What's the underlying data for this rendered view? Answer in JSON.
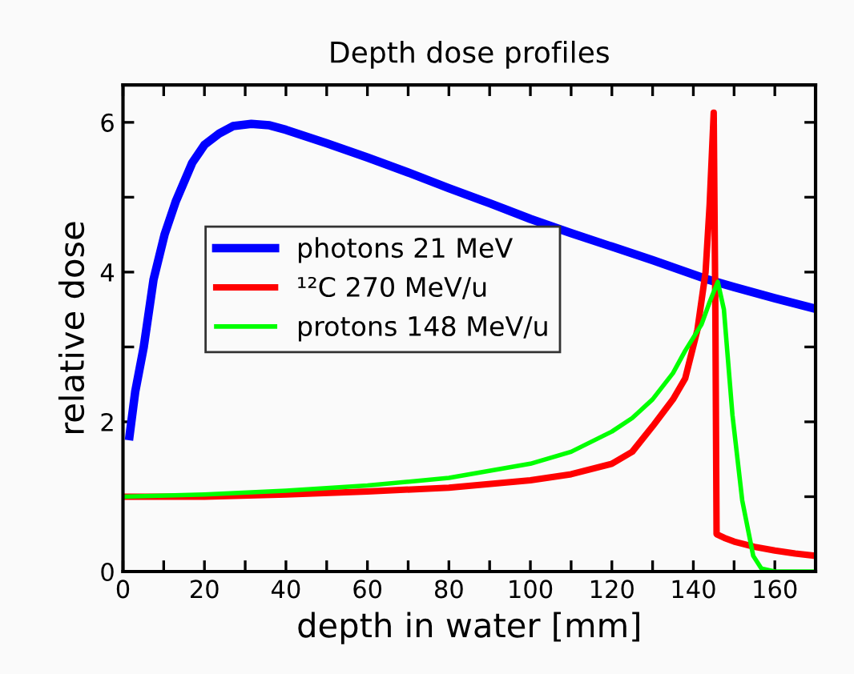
{
  "chart_data": {
    "type": "line",
    "title": "Depth dose profiles",
    "xlabel": "depth in water [mm]",
    "ylabel": "relative dose",
    "xlim": [
      0,
      170
    ],
    "ylim": [
      0,
      6.5
    ],
    "xticks": [
      0,
      {
        "value": 10,
        "label": null
      },
      20,
      {
        "value": 30,
        "label": null
      },
      40,
      {
        "value": 50,
        "label": null
      },
      60,
      {
        "value": 70,
        "label": null
      },
      80,
      {
        "value": 90,
        "label": null
      },
      100,
      {
        "value": 110,
        "label": null
      },
      120,
      {
        "value": 130,
        "label": null
      },
      140,
      {
        "value": 150,
        "label": null
      },
      160
    ],
    "yticks": [
      0,
      {
        "value": 1,
        "label": null
      },
      2,
      {
        "value": 3,
        "label": null
      },
      4,
      {
        "value": 5,
        "label": null
      },
      6
    ],
    "grid": false,
    "legend": "left",
    "marker": "none",
    "line_style": "solid",
    "series": [
      {
        "name": "photons 21 MeV",
        "color": "#0000ff",
        "x": [
          1.6,
          3,
          5.1,
          7.5,
          10.2,
          13,
          17,
          20,
          23.6,
          27,
          31.5,
          36,
          40,
          50,
          60,
          70,
          80,
          90,
          100,
          110,
          120,
          130,
          143,
          150,
          160,
          170
        ],
        "values": [
          1.81,
          2.4,
          3.0,
          3.9,
          4.5,
          4.95,
          5.46,
          5.7,
          5.85,
          5.95,
          5.98,
          5.96,
          5.9,
          5.72,
          5.53,
          5.33,
          5.12,
          4.92,
          4.71,
          4.52,
          4.34,
          4.16,
          3.91,
          3.8,
          3.65,
          3.51
        ]
      },
      {
        "name": "¹²C 270 MeV/u",
        "color": "#ff0000",
        "x": [
          0,
          20,
          40,
          60,
          80,
          100,
          110,
          120,
          125,
          130,
          135,
          138,
          141,
          143,
          144,
          145,
          145.4,
          145.7,
          147.6,
          150,
          155,
          160,
          165,
          170
        ],
        "values": [
          1.0,
          1.0,
          1.03,
          1.07,
          1.12,
          1.22,
          1.3,
          1.44,
          1.6,
          1.94,
          2.3,
          2.58,
          3.23,
          4.0,
          4.9,
          6.13,
          3.5,
          0.5,
          0.45,
          0.4,
          0.33,
          0.28,
          0.24,
          0.21
        ]
      },
      {
        "name": "protons 148 MeV/u",
        "color": "#00ff00",
        "x": [
          0,
          20,
          40,
          60,
          80,
          100,
          110,
          120,
          125,
          130,
          135,
          138,
          142,
          144,
          146,
          147.5,
          149.6,
          152,
          154.7,
          156.7,
          160,
          170
        ],
        "values": [
          1.0,
          1.03,
          1.08,
          1.15,
          1.25,
          1.44,
          1.6,
          1.87,
          2.05,
          2.3,
          2.65,
          2.95,
          3.3,
          3.6,
          3.87,
          3.5,
          2.09,
          0.95,
          0.21,
          0.04,
          0.0,
          0.0
        ]
      }
    ]
  }
}
